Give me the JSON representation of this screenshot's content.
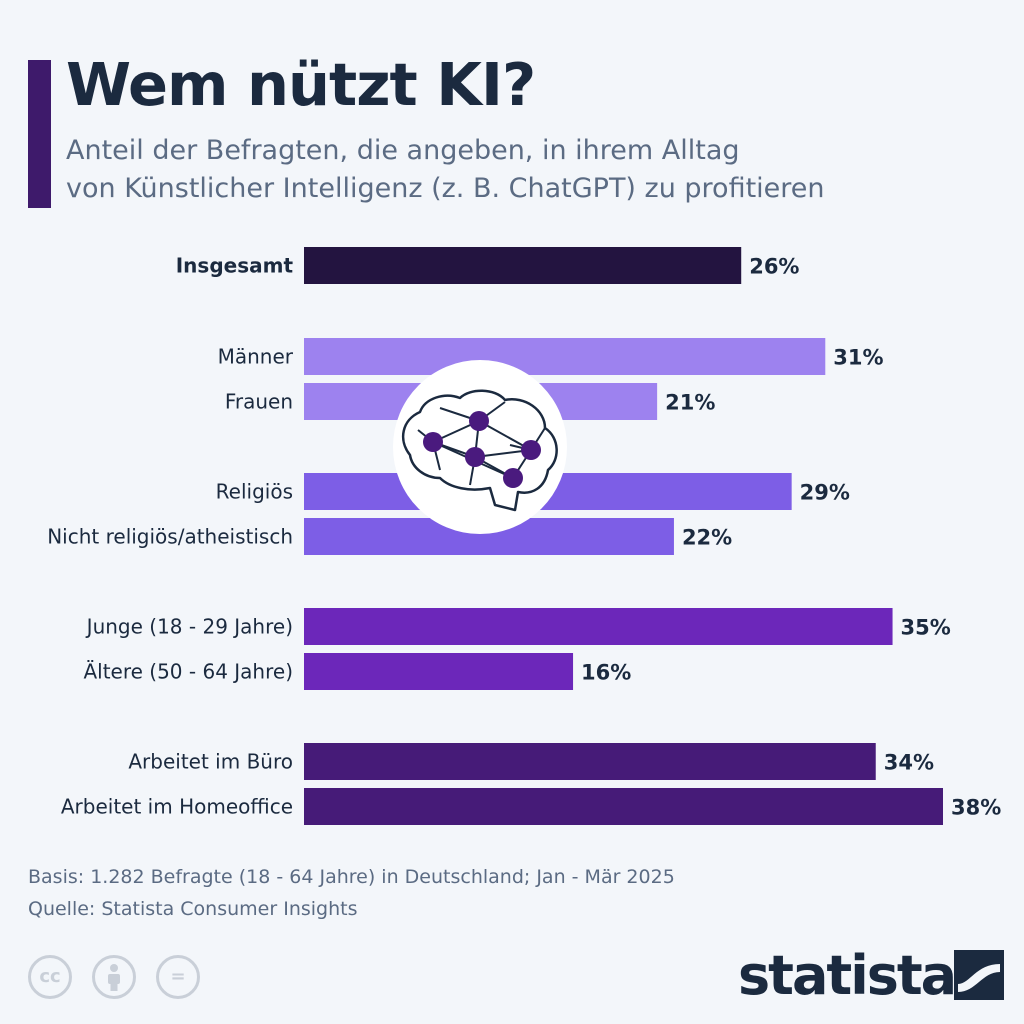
{
  "title": "Wem nützt KI?",
  "subtitle_line1": "Anteil der Befragten, die angeben, in ihrem Alltag",
  "subtitle_line2": "von Künstlicher Intelligenz (z. B. ChatGPT) zu profitieren",
  "chart_data": {
    "type": "bar",
    "orientation": "horizontal",
    "categories": [
      "Insgesamt",
      "Männer",
      "Frauen",
      "Religiös",
      "Nicht religiös/atheistisch",
      "Junge (18 - 29 Jahre)",
      "Ältere (50 - 64 Jahre)",
      "Arbeitet im Büro",
      "Arbeitet im Homeoffice"
    ],
    "values": [
      26,
      31,
      21,
      29,
      22,
      35,
      16,
      34,
      38
    ],
    "value_labels": [
      "26%",
      "31%",
      "21%",
      "29%",
      "22%",
      "35%",
      "16%",
      "34%",
      "38%"
    ],
    "groups": [
      0,
      1,
      1,
      2,
      2,
      3,
      3,
      4,
      4
    ],
    "colors": [
      "#231440",
      "#9d82ef",
      "#9d82ef",
      "#7d5ee6",
      "#7d5ee6",
      "#6c27ba",
      "#6c27ba",
      "#461b78",
      "#461b78"
    ],
    "unit": "%",
    "xlim": [
      0,
      38
    ]
  },
  "footer": {
    "basis": "Basis: 1.282 Befragte (18 - 64 Jahre) in Deutschland; Jan - Mär 2025",
    "source": "Quelle: Statista Consumer Insights",
    "cc_text": "cc",
    "eq_text": "=",
    "brand": "statista"
  },
  "icons": [
    "brain-network-icon",
    "cc-license-icon",
    "attribution-person-icon",
    "no-derivatives-icon",
    "statista-logo-mark-icon"
  ]
}
